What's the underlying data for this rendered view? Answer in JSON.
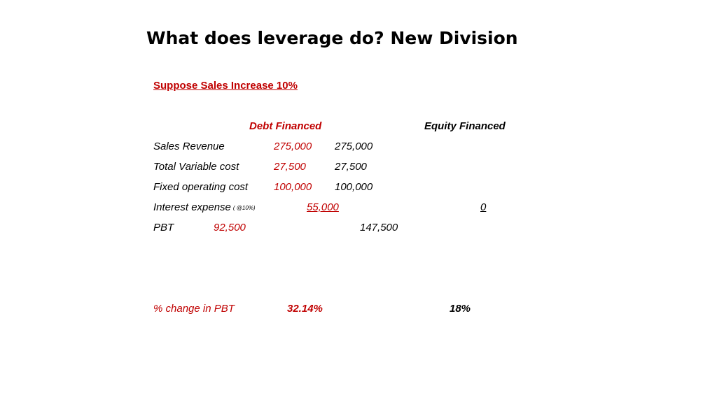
{
  "title": "What does leverage do? New Division",
  "subheading": "Suppose Sales Increase 10%",
  "columns": {
    "debt": "Debt Financed",
    "equity": "Equity Financed"
  },
  "rows": {
    "sales_revenue": {
      "label": "Sales Revenue",
      "debt": "275,000",
      "equity": "275,000"
    },
    "total_variable_cost": {
      "label": "Total Variable cost",
      "debt": "27,500",
      "equity": "27,500"
    },
    "fixed_operating_cost": {
      "label": "Fixed operating cost",
      "debt": "100,000",
      "equity": "100,000"
    },
    "interest_expense": {
      "label": "Interest expense",
      "note": "( @10%)",
      "debt": "55,000",
      "equity": "0"
    },
    "pbt": {
      "label": "PBT",
      "debt": "92,500",
      "equity": "147,500"
    }
  },
  "change": {
    "label": "% change in PBT",
    "debt": "32.14%",
    "equity": "18%"
  },
  "colors": {
    "accent": "#C00000",
    "text": "#000000"
  }
}
